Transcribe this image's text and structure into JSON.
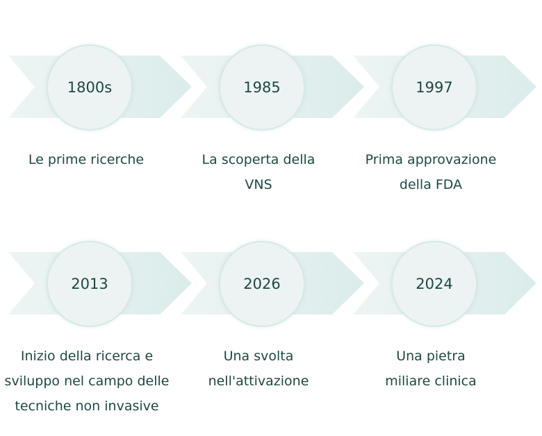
{
  "milestones": [
    {
      "year": "1800s",
      "label": "Le prime ricerche"
    },
    {
      "year": "1985",
      "label": "La scoperta della VNS"
    },
    {
      "year": "1997",
      "label": "Prima approvazione della FDA"
    },
    {
      "year": "2013",
      "label": "Inizio della ricerca e sviluppo nel campo delle tecniche non invasive"
    },
    {
      "year": "2026",
      "label": "Una svolta nell'attivazione"
    },
    {
      "year": "2024",
      "label": "Una pietra miliare clinica"
    }
  ],
  "colors": {
    "text": "#1e4843",
    "chevron_light": "#eef5f4",
    "chevron_dark": "#dbeceb",
    "circle": "#edf3f3"
  }
}
